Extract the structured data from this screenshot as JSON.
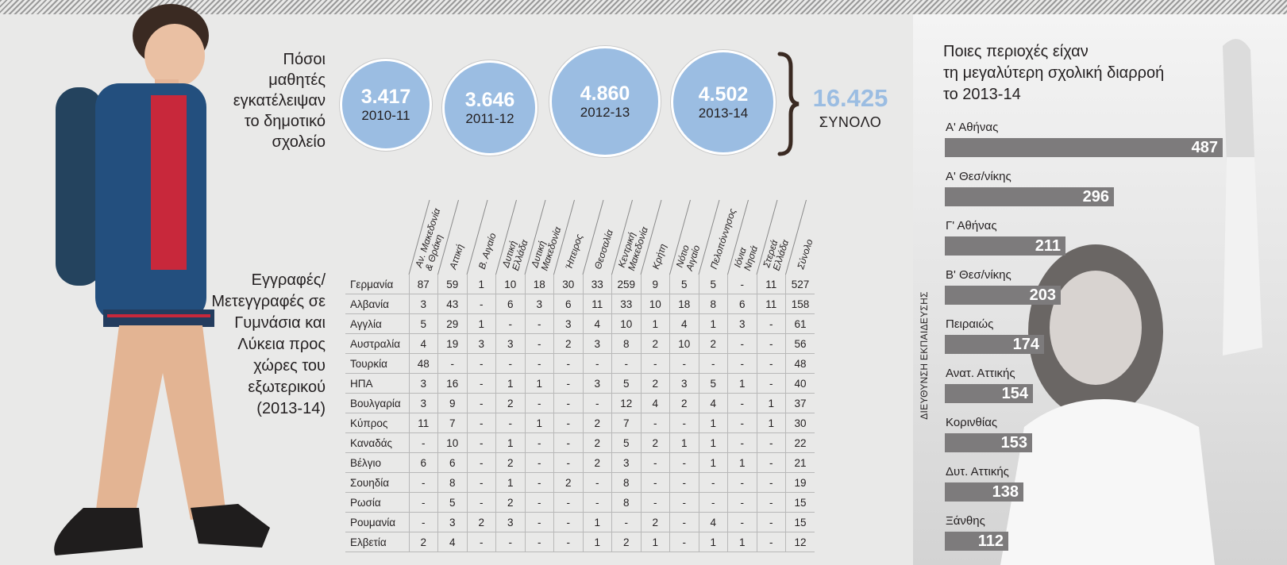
{
  "dropout": {
    "title_lines": [
      "Πόσοι",
      "μαθητές",
      "εγκατέλειψαν",
      "το δημοτικό",
      "σχολείο"
    ],
    "circles": [
      {
        "value": "3.417",
        "year": "2010-11"
      },
      {
        "value": "3.646",
        "year": "2011-12"
      },
      {
        "value": "4.860",
        "year": "2012-13"
      },
      {
        "value": "4.502",
        "year": "2013-14"
      }
    ],
    "total_value": "16.425",
    "total_label": "ΣΥΝΟΛΟ"
  },
  "enrollments": {
    "title_lines": [
      "Εγγραφές/",
      "Μετεγγραφές σε",
      "Γυμνάσια και",
      "Λύκεια προς",
      "χώρες του",
      "εξωτερικού",
      "(2013-14)"
    ],
    "columns": [
      "Αν. Μακεδονία & Θράκη",
      "Αττική",
      "Β. Αιγαίο",
      "Δυτική Ελλάδα",
      "Δυτική Μακεδονία",
      "Ήπειρος",
      "Θεσσαλία",
      "Κεντρική Μακεδονία",
      "Κρήτη",
      "Νότιο Αιγαίο",
      "Πελοπόννησος",
      "Ιόνια Νησιά",
      "Στερεά Ελλάδα",
      "Σύνολο"
    ],
    "rows": [
      {
        "country": "Γερμανία",
        "cells": [
          "87",
          "59",
          "1",
          "10",
          "18",
          "30",
          "33",
          "259",
          "9",
          "5",
          "5",
          "-",
          "11",
          "527"
        ]
      },
      {
        "country": "Αλβανία",
        "cells": [
          "3",
          "43",
          "-",
          "6",
          "3",
          "6",
          "11",
          "33",
          "10",
          "18",
          "8",
          "6",
          "11",
          "158"
        ]
      },
      {
        "country": "Αγγλία",
        "cells": [
          "5",
          "29",
          "1",
          "-",
          "-",
          "3",
          "4",
          "10",
          "1",
          "4",
          "1",
          "3",
          "-",
          "61"
        ]
      },
      {
        "country": "Αυστραλία",
        "cells": [
          "4",
          "19",
          "3",
          "3",
          "-",
          "2",
          "3",
          "8",
          "2",
          "10",
          "2",
          "-",
          "-",
          "56"
        ]
      },
      {
        "country": "Τουρκία",
        "cells": [
          "48",
          "-",
          "-",
          "-",
          "-",
          "-",
          "-",
          "-",
          "-",
          "-",
          "-",
          "-",
          "-",
          "48"
        ]
      },
      {
        "country": "ΗΠΑ",
        "cells": [
          "3",
          "16",
          "-",
          "1",
          "1",
          "-",
          "3",
          "5",
          "2",
          "3",
          "5",
          "1",
          "-",
          "40"
        ]
      },
      {
        "country": "Βουλγαρία",
        "cells": [
          "3",
          "9",
          "-",
          "2",
          "-",
          "-",
          "-",
          "12",
          "4",
          "2",
          "4",
          "-",
          "1",
          "37"
        ]
      },
      {
        "country": "Κύπρος",
        "cells": [
          "11",
          "7",
          "-",
          "-",
          "1",
          "-",
          "2",
          "7",
          "-",
          "-",
          "1",
          "-",
          "1",
          "30"
        ]
      },
      {
        "country": "Καναδάς",
        "cells": [
          "-",
          "10",
          "-",
          "1",
          "-",
          "-",
          "2",
          "5",
          "2",
          "1",
          "1",
          "-",
          "-",
          "22"
        ]
      },
      {
        "country": "Βέλγιο",
        "cells": [
          "6",
          "6",
          "-",
          "2",
          "-",
          "-",
          "2",
          "3",
          "-",
          "-",
          "1",
          "1",
          "-",
          "21"
        ]
      },
      {
        "country": "Σουηδία",
        "cells": [
          "-",
          "8",
          "-",
          "1",
          "-",
          "2",
          "-",
          "8",
          "-",
          "-",
          "-",
          "-",
          "-",
          "19"
        ]
      },
      {
        "country": "Ρωσία",
        "cells": [
          "-",
          "5",
          "-",
          "2",
          "-",
          "-",
          "-",
          "8",
          "-",
          "-",
          "-",
          "-",
          "-",
          "15"
        ]
      },
      {
        "country": "Ρουμανία",
        "cells": [
          "-",
          "3",
          "2",
          "3",
          "-",
          "-",
          "1",
          "-",
          "2",
          "-",
          "4",
          "-",
          "-",
          "15"
        ]
      },
      {
        "country": "Ελβετία",
        "cells": [
          "2",
          "4",
          "-",
          "-",
          "-",
          "-",
          "1",
          "2",
          "1",
          "-",
          "1",
          "1",
          "-",
          "12"
        ]
      }
    ]
  },
  "regions": {
    "title_lines": [
      "Ποιες περιοχές είχαν",
      "τη μεγαλύτερη σχολική διαρροή",
      "το 2013-14"
    ],
    "axis_label": "ΔΙΕΥΘΥΝΣΗ ΕΚΠΑΙΔΕΥΣΗΣ"
  },
  "chart_data": {
    "type": "bar",
    "orientation": "horizontal",
    "title": "Ποιες περιοχές είχαν τη μεγαλύτερη σχολική διαρροή το 2013-14",
    "ylabel": "ΔΙΕΥΘΥΝΣΗ ΕΚΠΑΙΔΕΥΣΗΣ",
    "categories": [
      "Α' Αθήνας",
      "Α' Θεσ/νίκης",
      "Γ' Αθήνας",
      "Β' Θεσ/νίκης",
      "Πειραιώς",
      "Ανατ. Αττικής",
      "Κορινθίας",
      "Δυτ. Αττικής",
      "Ξάνθης"
    ],
    "values": [
      487,
      296,
      211,
      203,
      174,
      154,
      153,
      138,
      112
    ],
    "value_labels": [
      "487",
      "296",
      "211",
      "203",
      "174",
      "154",
      "153",
      "138",
      "112"
    ],
    "bar_color": "#7d7b7c"
  },
  "colors": {
    "circle_fill": "#9bbde2",
    "bar": "#7d7b7c",
    "text": "#231f20"
  }
}
